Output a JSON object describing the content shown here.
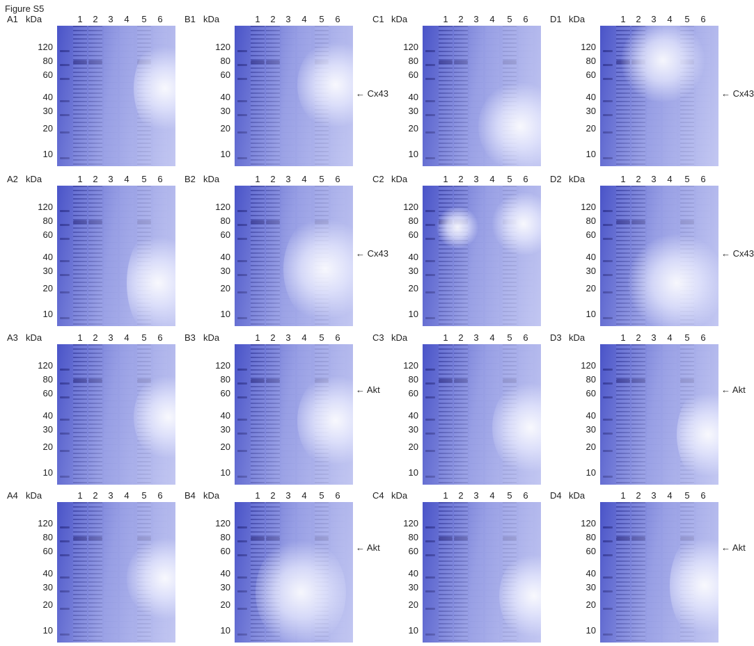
{
  "figure_title": "Figure S5",
  "unit_label": "kDa",
  "lanes": [
    "1",
    "2",
    "3",
    "4",
    "5",
    "6"
  ],
  "panels": [
    {
      "label": "A1",
      "mw": [
        "120",
        "80",
        "60",
        "40",
        "30",
        "20",
        "10"
      ],
      "annotation": ""
    },
    {
      "label": "B1",
      "mw": [
        "120",
        "80",
        "60",
        "40",
        "30",
        "20",
        "10"
      ],
      "annotation": "← Cx43"
    },
    {
      "label": "C1",
      "mw": [
        "120",
        "80",
        "60",
        "40",
        "30",
        "20",
        "10"
      ],
      "annotation": ""
    },
    {
      "label": "D1",
      "mw": [
        "120",
        "80",
        "60",
        "40",
        "30",
        "20",
        "10"
      ],
      "annotation": "← Cx43"
    },
    {
      "label": "A2",
      "mw": [
        "120",
        "80",
        "60",
        "40",
        "30",
        "20",
        "10"
      ],
      "annotation": ""
    },
    {
      "label": "B2",
      "mw": [
        "120",
        "80",
        "60",
        "40",
        "30",
        "20",
        "10"
      ],
      "annotation": "← Cx43"
    },
    {
      "label": "C2",
      "mw": [
        "120",
        "80",
        "60",
        "40",
        "30",
        "20",
        "10"
      ],
      "annotation": ""
    },
    {
      "label": "D2",
      "mw": [
        "120",
        "80",
        "60",
        "40",
        "30",
        "20",
        "10"
      ],
      "annotation": "← Cx43"
    },
    {
      "label": "A3",
      "mw": [
        "120",
        "80",
        "60",
        "40",
        "30",
        "20",
        "10"
      ],
      "annotation": ""
    },
    {
      "label": "B3",
      "mw": [
        "120",
        "80",
        "60",
        "40",
        "30",
        "20",
        "10"
      ],
      "annotation": "← Akt"
    },
    {
      "label": "C3",
      "mw": [
        "120",
        "80",
        "60",
        "40",
        "30",
        "20",
        "10"
      ],
      "annotation": ""
    },
    {
      "label": "D3",
      "mw": [
        "120",
        "80",
        "60",
        "40",
        "30",
        "20",
        "10"
      ],
      "annotation": "← Akt"
    },
    {
      "label": "A4",
      "mw": [
        "120",
        "80",
        "60",
        "40",
        "30",
        "20",
        "10"
      ],
      "annotation": ""
    },
    {
      "label": "B4",
      "mw": [
        "120",
        "80",
        "60",
        "40",
        "30",
        "20",
        "10"
      ],
      "annotation": "← Akt"
    },
    {
      "label": "C4",
      "mw": [
        "120",
        "80",
        "60",
        "40",
        "30",
        "20",
        "10"
      ],
      "annotation": ""
    },
    {
      "label": "D4",
      "mw": [
        "120",
        "80",
        "60",
        "40",
        "30",
        "20",
        "10"
      ],
      "annotation": "← Akt"
    }
  ],
  "colors": {
    "gel": "#4a54c8",
    "band": "#1a1e82",
    "background": "#ffffff"
  }
}
